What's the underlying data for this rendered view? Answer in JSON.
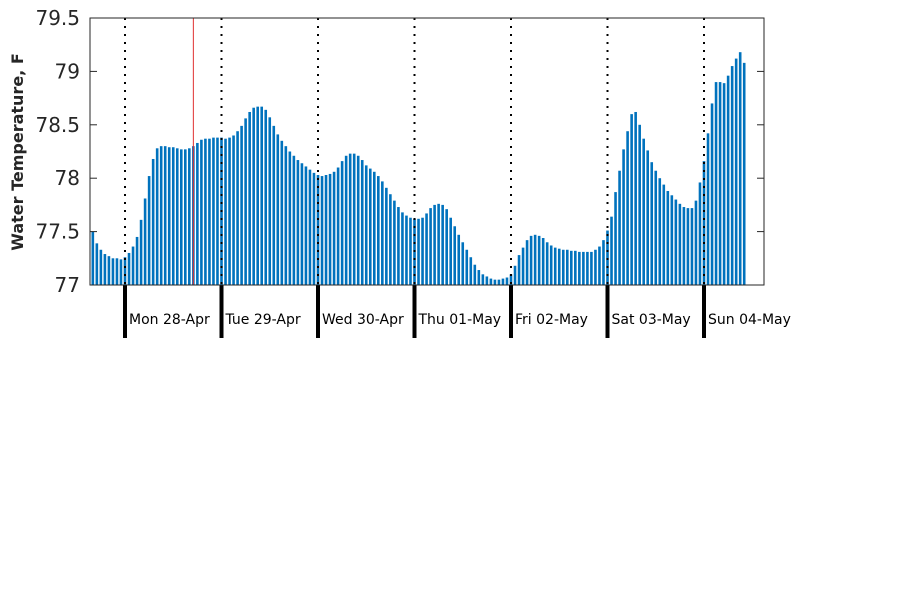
{
  "chart_data": {
    "type": "bar",
    "title": "",
    "xlabel": "",
    "ylabel": "Water Temperature, F",
    "ylim": [
      77,
      79.5
    ],
    "yticks": [
      "77",
      "77.5",
      "78",
      "78.5",
      "79",
      "79.5"
    ],
    "grid": false,
    "legend": "none",
    "colors": {
      "bar": "#0072BD",
      "marker": "#e03030",
      "divider": "#000000",
      "axis": "#262626"
    },
    "day_labels": [
      "Mon 28-Apr",
      "Tue 29-Apr",
      "Wed 30-Apr",
      "Thu 01-May",
      "Fri 02-May",
      "Sat 03-May",
      "Sun 04-May"
    ],
    "samples_per_day": 24,
    "leading_samples": 9,
    "marker_index": 26,
    "series": [
      {
        "values": [
          77.6,
          77.5,
          77.39,
          77.33,
          77.29,
          77.27,
          77.25,
          77.25,
          77.24,
          77.26,
          77.3,
          77.36,
          77.45,
          77.61,
          77.81,
          78.02,
          78.18,
          78.28,
          78.3,
          78.3,
          78.29,
          78.29,
          78.28,
          78.27,
          78.27,
          78.28,
          78.3,
          78.33,
          78.36,
          78.37,
          78.37,
          78.38,
          78.38,
          78.38,
          78.37,
          78.38,
          78.4,
          78.44,
          78.49,
          78.56,
          78.62,
          78.66,
          78.67,
          78.67,
          78.64,
          78.57,
          78.49,
          78.41,
          78.35,
          78.3,
          78.25,
          78.21,
          78.17,
          78.14,
          78.11,
          78.08,
          78.05,
          78.03,
          78.02,
          78.03,
          78.04,
          78.06,
          78.1,
          78.16,
          78.21,
          78.23,
          78.23,
          78.21,
          78.17,
          78.12,
          78.09,
          78.06,
          78.02,
          77.97,
          77.91,
          77.85,
          77.79,
          77.73,
          77.68,
          77.65,
          77.63,
          77.62,
          77.62,
          77.63,
          77.67,
          77.72,
          77.75,
          77.76,
          77.75,
          77.71,
          77.63,
          77.55,
          77.47,
          77.4,
          77.33,
          77.26,
          77.19,
          77.14,
          77.1,
          77.08,
          77.06,
          77.05,
          77.05,
          77.06,
          77.07,
          77.1,
          77.18,
          77.28,
          77.35,
          77.42,
          77.46,
          77.47,
          77.46,
          77.44,
          77.4,
          77.37,
          77.35,
          77.34,
          77.33,
          77.33,
          77.32,
          77.32,
          77.31,
          77.31,
          77.31,
          77.31,
          77.33,
          77.36,
          77.42,
          77.51,
          77.64,
          77.87,
          78.07,
          78.27,
          78.44,
          78.6,
          78.62,
          78.5,
          78.37,
          78.26,
          78.15,
          78.07,
          78.0,
          77.94,
          77.88,
          77.84,
          77.8,
          77.76,
          77.73,
          77.72,
          77.72,
          77.79,
          77.96,
          78.16,
          78.42,
          78.7,
          78.9,
          78.9,
          78.89,
          78.96,
          79.05,
          79.12,
          79.18,
          79.08
        ]
      }
    ]
  }
}
